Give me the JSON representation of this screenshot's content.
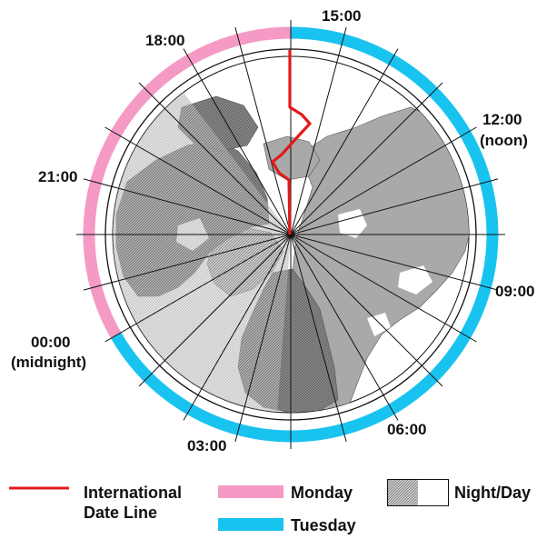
{
  "time_labels": {
    "t1500": "15:00",
    "t1800": "18:00",
    "t1200": "12:00",
    "noon": "(noon)",
    "t2100": "21:00",
    "t0900": "09:00",
    "t0000": "00:00",
    "midnight": "(midnight)",
    "t0300": "03:00",
    "t0600": "06:00"
  },
  "legend": {
    "date_line_line1": "International",
    "date_line_line2": "Date Line",
    "monday": "Monday",
    "tuesday": "Tuesday",
    "night_day": "Night/Day"
  },
  "colors": {
    "date_line": "#e31a1a",
    "monday": "#f59ac4",
    "tuesday": "#19c3ef",
    "land": "#a9a9a9",
    "night_shade": "#c9c9c9"
  },
  "icons": [
    "polar-globe",
    "date-line-stroke",
    "night-hatch-swatch"
  ]
}
